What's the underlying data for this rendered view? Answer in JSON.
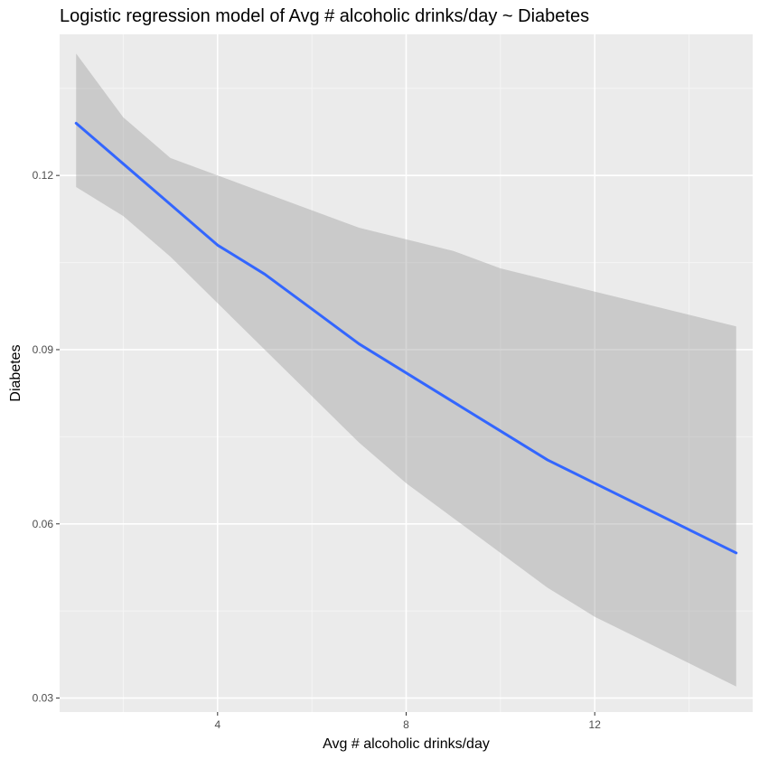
{
  "chart_data": {
    "type": "line",
    "title": "Logistic regression model of Avg # alcoholic drinks/day ~ Diabetes",
    "xlabel": "Avg # alcoholic drinks/day",
    "ylabel": "Diabetes",
    "xlim": [
      0.65,
      15.35
    ],
    "ylim": [
      0.0276,
      0.1443
    ],
    "x_ticks": [
      4,
      8,
      12
    ],
    "x_tick_labels": [
      "4",
      "8",
      "12"
    ],
    "x_minor_ticks": [
      2,
      6,
      10,
      14
    ],
    "y_ticks": [
      0.03,
      0.06,
      0.09,
      0.12
    ],
    "y_tick_labels": [
      "0.03",
      "0.06",
      "0.09",
      "0.12"
    ],
    "y_minor_ticks": [
      0.045,
      0.075,
      0.105,
      0.135
    ],
    "grid": true,
    "legend": "none",
    "series": [
      {
        "line_color": "#3366FF",
        "band_color": "#999999",
        "x": [
          1,
          2,
          3,
          4,
          5,
          6,
          7,
          8,
          9,
          10,
          11,
          12,
          13,
          14,
          15
        ],
        "y": [
          0.129,
          0.122,
          0.115,
          0.108,
          0.103,
          0.097,
          0.091,
          0.086,
          0.081,
          0.076,
          0.071,
          0.067,
          0.063,
          0.059,
          0.055
        ],
        "upper": [
          0.141,
          0.13,
          0.123,
          0.12,
          0.117,
          0.114,
          0.111,
          0.109,
          0.107,
          0.104,
          0.102,
          0.1,
          0.098,
          0.096,
          0.094
        ],
        "lower": [
          0.118,
          0.113,
          0.106,
          0.098,
          0.09,
          0.082,
          0.074,
          0.067,
          0.061,
          0.055,
          0.049,
          0.044,
          0.04,
          0.036,
          0.032
        ]
      }
    ]
  },
  "colors": {
    "panel_background": "#EBEBEB",
    "grid_major": "#FFFFFF",
    "grid_minor": "#F5F5F5"
  }
}
